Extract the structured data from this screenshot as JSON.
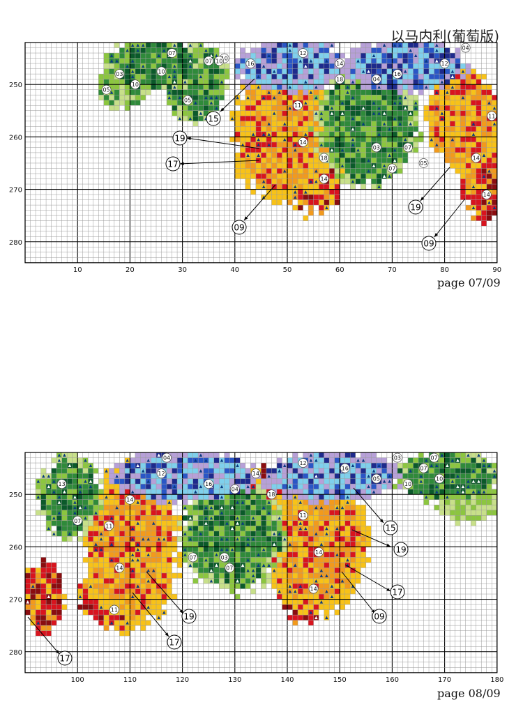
{
  "title": "以马内利(葡萄版)",
  "colors": {
    "dark_green": "#0b5a2a",
    "green": "#2f8a3a",
    "light_green": "#8cc63f",
    "pale_green": "#c8e08a",
    "red": "#d8141e",
    "dark_red": "#8a0d10",
    "orange": "#f29a1c",
    "yellow": "#f8c218",
    "light_blue": "#7fd0ec",
    "blue": "#2a56c6",
    "navy": "#1e2a8c",
    "lavender": "#b7a0d8",
    "grid": "#9a9a9a",
    "grid_major": "#000000"
  },
  "panels": [
    {
      "page_label": "page 07/09",
      "x_ticks": [
        "10",
        "20",
        "30",
        "40",
        "50",
        "60",
        "70",
        "80",
        "90"
      ],
      "y_ticks": [
        "250",
        "260",
        "270",
        "280"
      ],
      "symbol_labels": [
        "07",
        "10",
        "03",
        "10",
        "05",
        "10",
        "07",
        "10",
        "05",
        "16",
        "12",
        "04",
        "12",
        "14",
        "18",
        "04",
        "16",
        "11",
        "14",
        "18",
        "14",
        "03",
        "07",
        "07",
        "05",
        "11",
        "14",
        "14"
      ],
      "callouts": [
        "15",
        "19",
        "17",
        "09",
        "19",
        "09"
      ]
    },
    {
      "page_label": "page 08/09",
      "x_ticks": [
        "100",
        "110",
        "120",
        "130",
        "140",
        "150",
        "160",
        "170",
        "180"
      ],
      "y_ticks": [
        "250",
        "260",
        "270",
        "280"
      ],
      "symbol_labels": [
        "13",
        "07",
        "04",
        "12",
        "16",
        "14",
        "04",
        "18",
        "11",
        "11",
        "14",
        "11",
        "07",
        "03",
        "07",
        "14",
        "14",
        "12",
        "16",
        "05",
        "03",
        "07",
        "10",
        "07",
        "10",
        "14"
      ],
      "callouts": [
        "15",
        "19",
        "17",
        "09",
        "19",
        "17",
        "17"
      ]
    }
  ]
}
